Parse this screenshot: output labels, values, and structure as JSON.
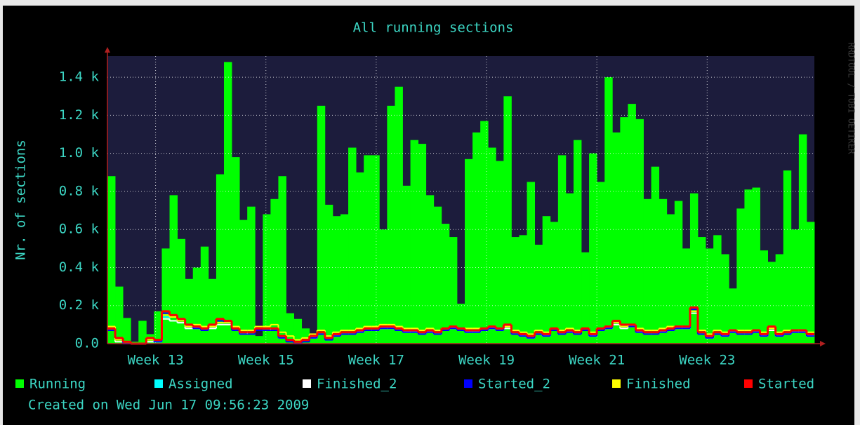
{
  "chart_data": {
    "type": "bar",
    "title": "All running sections",
    "y_label": "Nr. of sections",
    "watermark": "RRDTOOL / TOBI OETIKER",
    "created": "Created on Wed Jun 17 09:56:23 2009",
    "categories": [
      null,
      null,
      null,
      null,
      null,
      null,
      null,
      null,
      null,
      null,
      null,
      null,
      null,
      null,
      null,
      null,
      null,
      null,
      null,
      null,
      null,
      null,
      null,
      null,
      null,
      null,
      null,
      null,
      null,
      null,
      null,
      null,
      null,
      null,
      null,
      null,
      null,
      null,
      null,
      null,
      null,
      null,
      null,
      null,
      null,
      null,
      null,
      null,
      null,
      null,
      null,
      null,
      null,
      null,
      null,
      null,
      null,
      null,
      null,
      null,
      null,
      null,
      null,
      null,
      null,
      null,
      null,
      null,
      null,
      null,
      null,
      null,
      null,
      null,
      null,
      null,
      null,
      null,
      null,
      null,
      null,
      null,
      null,
      null,
      null,
      null,
      null,
      null,
      null,
      null,
      null
    ],
    "ylim": [
      0,
      1500
    ],
    "yticks": [
      {
        "value": 0,
        "label": "0.0"
      },
      {
        "value": 200,
        "label": "0.2 k"
      },
      {
        "value": 400,
        "label": "0.4 k"
      },
      {
        "value": 600,
        "label": "0.6 k"
      },
      {
        "value": 800,
        "label": "0.8 k"
      },
      {
        "value": 1000,
        "label": "1.0 k"
      },
      {
        "value": 1200,
        "label": "1.2 k"
      },
      {
        "value": 1400,
        "label": "1.4 k"
      }
    ],
    "xticks": [
      {
        "value": 5.7,
        "label": "Week 13"
      },
      {
        "value": 19.9,
        "label": "Week 15"
      },
      {
        "value": 34.1,
        "label": "Week 17"
      },
      {
        "value": 48.3,
        "label": "Week 19"
      },
      {
        "value": 62.5,
        "label": "Week 21"
      },
      {
        "value": 76.7,
        "label": "Week 23"
      }
    ],
    "grid": true,
    "series": [
      {
        "name": "Running",
        "color": "#00ff00",
        "style": "area",
        "values": [
          880,
          300,
          135,
          10,
          120,
          50,
          170,
          500,
          780,
          550,
          340,
          400,
          510,
          340,
          890,
          1480,
          980,
          650,
          720,
          40,
          680,
          760,
          880,
          160,
          130,
          80,
          40,
          1250,
          730,
          670,
          680,
          1030,
          900,
          990,
          990,
          600,
          1250,
          1350,
          830,
          1070,
          1050,
          780,
          720,
          630,
          560,
          210,
          970,
          1110,
          1170,
          1030,
          960,
          1300,
          560,
          570,
          850,
          520,
          670,
          640,
          990,
          790,
          1070,
          480,
          1000,
          850,
          1400,
          1110,
          1190,
          1260,
          1180,
          760,
          930,
          760,
          680,
          750,
          500,
          790,
          560,
          500,
          570,
          470,
          290,
          710,
          810,
          820,
          490,
          430,
          470,
          910,
          600,
          1100,
          640
        ]
      },
      {
        "name": "Assigned",
        "color": "#00ffff",
        "style": "line",
        "values": [
          80,
          20,
          0,
          0,
          0,
          10,
          10,
          140,
          120,
          110,
          80,
          80,
          70,
          80,
          100,
          100,
          70,
          50,
          60,
          70,
          70,
          80,
          30,
          20,
          10,
          20,
          30,
          50,
          30,
          40,
          50,
          50,
          60,
          70,
          70,
          80,
          80,
          70,
          60,
          60,
          50,
          60,
          50,
          70,
          80,
          70,
          60,
          60,
          70,
          80,
          70,
          80,
          50,
          40,
          30,
          50,
          40,
          70,
          50,
          60,
          50,
          70,
          40,
          70,
          80,
          100,
          80,
          90,
          60,
          50,
          50,
          60,
          70,
          80,
          80,
          170,
          50,
          30,
          50,
          40,
          60,
          50,
          50,
          60,
          40,
          70,
          40,
          50,
          60,
          60,
          40
        ]
      },
      {
        "name": "Finished_2",
        "color": "#ffffff",
        "style": "line",
        "values": [
          70,
          10,
          0,
          0,
          0,
          10,
          10,
          130,
          120,
          110,
          80,
          80,
          70,
          80,
          100,
          100,
          70,
          50,
          60,
          70,
          70,
          80,
          30,
          20,
          10,
          20,
          30,
          50,
          30,
          40,
          50,
          50,
          60,
          70,
          70,
          80,
          80,
          70,
          60,
          60,
          50,
          60,
          50,
          70,
          80,
          70,
          60,
          60,
          70,
          80,
          70,
          80,
          50,
          40,
          30,
          50,
          40,
          70,
          50,
          60,
          50,
          70,
          40,
          70,
          80,
          100,
          80,
          90,
          60,
          50,
          50,
          60,
          70,
          80,
          80,
          160,
          50,
          30,
          50,
          40,
          60,
          50,
          50,
          60,
          40,
          70,
          40,
          50,
          60,
          60,
          40
        ]
      },
      {
        "name": "Started_2",
        "color": "#0000ff",
        "style": "line",
        "values": [
          70,
          20,
          0,
          0,
          0,
          20,
          10,
          160,
          140,
          120,
          90,
          80,
          70,
          90,
          120,
          110,
          70,
          50,
          50,
          70,
          70,
          70,
          30,
          10,
          0,
          10,
          30,
          50,
          20,
          40,
          50,
          50,
          60,
          70,
          70,
          80,
          80,
          70,
          60,
          60,
          50,
          60,
          50,
          70,
          80,
          70,
          60,
          60,
          70,
          80,
          70,
          90,
          50,
          40,
          30,
          50,
          40,
          70,
          50,
          60,
          50,
          70,
          40,
          70,
          80,
          110,
          90,
          90,
          60,
          50,
          50,
          60,
          70,
          80,
          80,
          180,
          50,
          30,
          50,
          40,
          60,
          50,
          50,
          60,
          40,
          80,
          40,
          50,
          60,
          60,
          40
        ]
      },
      {
        "name": "Finished",
        "color": "#ffff00",
        "style": "line",
        "values": [
          90,
          20,
          10,
          0,
          0,
          20,
          20,
          150,
          140,
          120,
          90,
          100,
          90,
          90,
          110,
          110,
          90,
          70,
          70,
          90,
          90,
          100,
          60,
          40,
          20,
          30,
          50,
          70,
          40,
          60,
          70,
          70,
          80,
          90,
          90,
          100,
          100,
          90,
          80,
          80,
          70,
          80,
          70,
          80,
          90,
          80,
          80,
          80,
          80,
          90,
          80,
          90,
          70,
          60,
          50,
          70,
          60,
          80,
          70,
          80,
          70,
          80,
          60,
          80,
          90,
          110,
          90,
          100,
          80,
          70,
          70,
          80,
          90,
          90,
          90,
          170,
          70,
          50,
          70,
          60,
          70,
          70,
          70,
          70,
          60,
          80,
          60,
          70,
          70,
          70,
          60
        ]
      },
      {
        "name": "Started",
        "color": "#ff0000",
        "style": "line",
        "values": [
          80,
          30,
          10,
          0,
          0,
          30,
          20,
          170,
          150,
          130,
          100,
          90,
          80,
          100,
          130,
          120,
          80,
          60,
          60,
          80,
          80,
          80,
          40,
          20,
          10,
          20,
          40,
          60,
          30,
          50,
          60,
          60,
          70,
          80,
          80,
          90,
          90,
          80,
          70,
          70,
          60,
          70,
          60,
          80,
          90,
          80,
          70,
          70,
          80,
          90,
          80,
          100,
          60,
          50,
          40,
          60,
          50,
          80,
          60,
          70,
          60,
          80,
          50,
          80,
          90,
          120,
          100,
          100,
          70,
          60,
          60,
          70,
          80,
          90,
          90,
          190,
          60,
          40,
          60,
          50,
          70,
          60,
          60,
          70,
          50,
          90,
          50,
          60,
          70,
          70,
          50
        ]
      }
    ]
  }
}
